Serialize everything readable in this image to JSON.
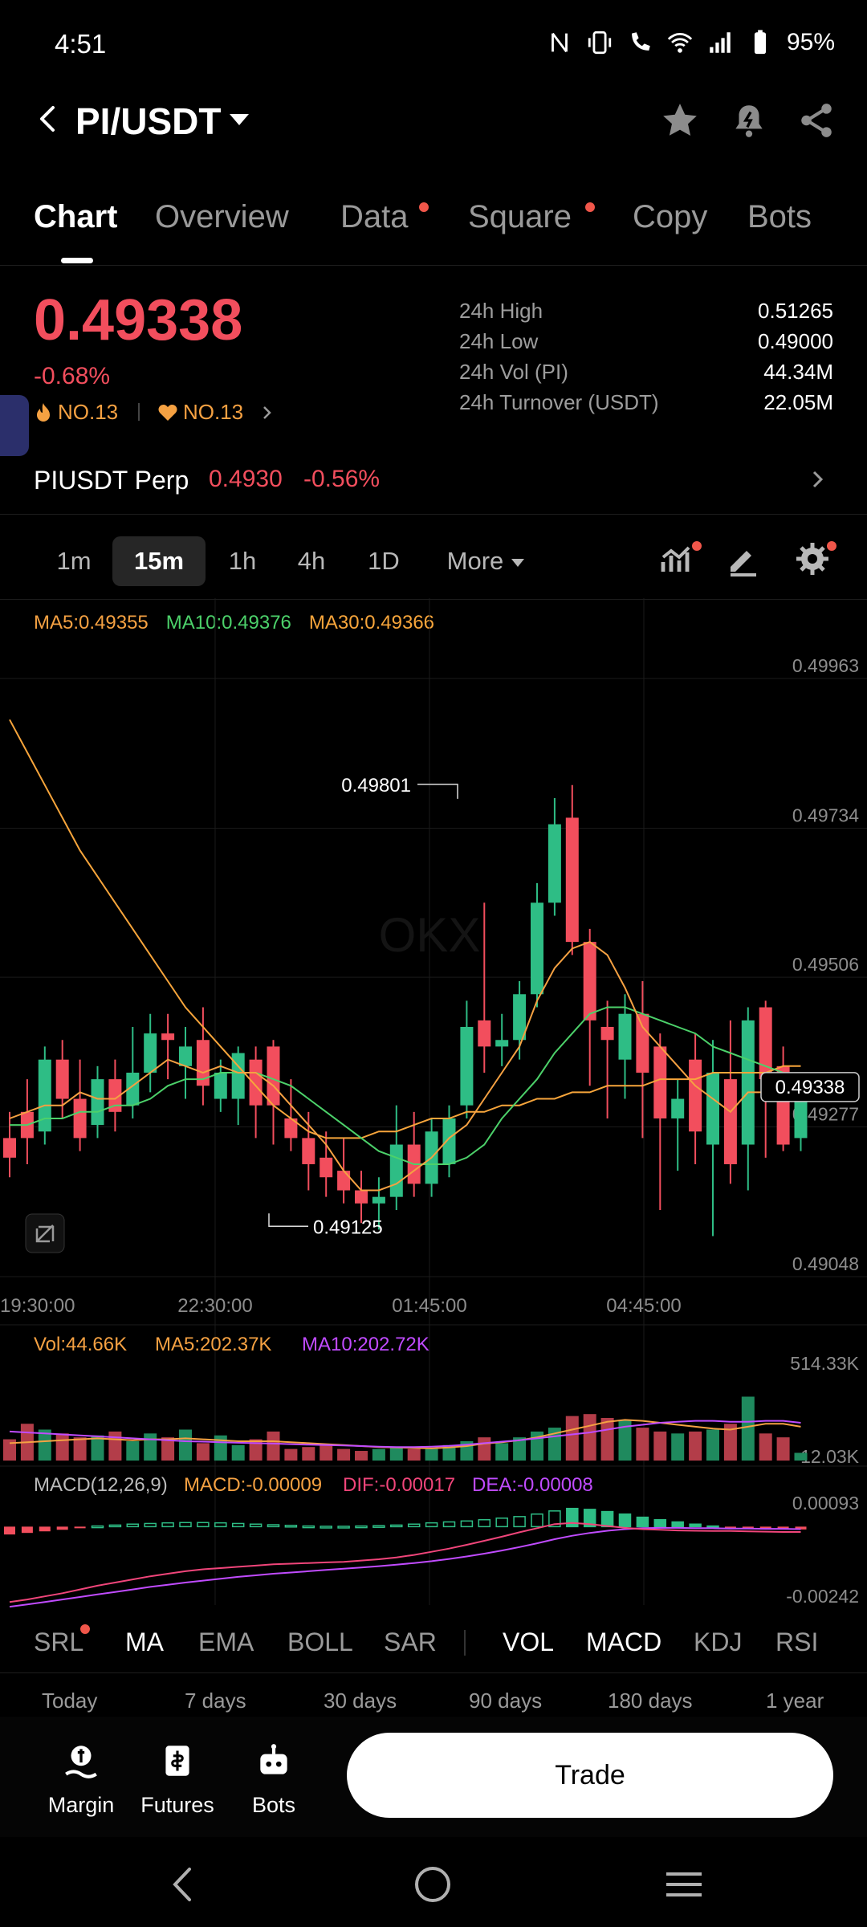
{
  "status_bar": {
    "time": "4:51",
    "battery": "95%"
  },
  "header": {
    "pair": "PI/USDT"
  },
  "tabs": [
    {
      "label": "Chart",
      "active": true
    },
    {
      "label": "Overview"
    },
    {
      "label": "Data",
      "dot": true
    },
    {
      "label": "Square",
      "dot": true
    },
    {
      "label": "Copy"
    },
    {
      "label": "Bots"
    }
  ],
  "ticker": {
    "price": "0.49338",
    "change": "-0.68%",
    "rank1": "NO.13",
    "rank2": "NO.13",
    "stats": [
      {
        "label": "24h High",
        "value": "0.51265"
      },
      {
        "label": "24h Low",
        "value": "0.49000"
      },
      {
        "label": "24h Vol (PI)",
        "value": "44.34M"
      },
      {
        "label": "24h Turnover (USDT)",
        "value": "22.05M"
      }
    ]
  },
  "perp": {
    "name": "PIUSDT Perp",
    "price": "0.4930",
    "change": "-0.56%"
  },
  "timeframes": [
    "1m",
    "15m",
    "1h",
    "4h",
    "1D",
    "More"
  ],
  "active_timeframe": "15m",
  "colors": {
    "up": "#2ebd85",
    "down": "#f24e5d",
    "ma5": "#f5a142",
    "ma10": "#4cd16a",
    "ma30": "#f7a53b",
    "vol_ma10": "#c04bff",
    "macd_dea": "#c04bff",
    "macd_dif": "#f0457a"
  },
  "chart_data": {
    "type": "candlestick",
    "ma_legend": {
      "ma5": "MA5:0.49355",
      "ma10": "MA10:0.49376",
      "ma30": "MA30:0.49366"
    },
    "y_ticks": [
      "0.49963",
      "0.49734",
      "0.49506",
      "0.49277",
      "0.49048"
    ],
    "ylim": [
      0.49048,
      0.49963
    ],
    "x_ticks": [
      "19:30:00",
      "22:30:00",
      "01:45:00",
      "04:45:00"
    ],
    "high_label": "0.49801",
    "low_label": "0.49125",
    "last_price": "0.49338",
    "candles": [
      [
        0.4926,
        0.4923,
        0.493,
        0.492
      ],
      [
        0.493,
        0.4926,
        0.4935,
        0.4922
      ],
      [
        0.4927,
        0.4938,
        0.494,
        0.4925
      ],
      [
        0.4938,
        0.4932,
        0.4941,
        0.4929
      ],
      [
        0.4932,
        0.4926,
        0.4938,
        0.4924
      ],
      [
        0.4928,
        0.4935,
        0.4937,
        0.4926
      ],
      [
        0.4935,
        0.493,
        0.4938,
        0.4927
      ],
      [
        0.4931,
        0.4936,
        0.4943,
        0.4929
      ],
      [
        0.4936,
        0.4942,
        0.4945,
        0.4933
      ],
      [
        0.4942,
        0.4941,
        0.4945,
        0.4935
      ],
      [
        0.4937,
        0.494,
        0.4943,
        0.4932
      ],
      [
        0.4941,
        0.4934,
        0.4946,
        0.4931
      ],
      [
        0.4932,
        0.4936,
        0.4938,
        0.493
      ],
      [
        0.4932,
        0.4939,
        0.494,
        0.4928
      ],
      [
        0.4938,
        0.4931,
        0.494,
        0.4926
      ],
      [
        0.494,
        0.4931,
        0.4941,
        0.4925
      ],
      [
        0.4929,
        0.4926,
        0.4935,
        0.4924
      ],
      [
        0.4926,
        0.4922,
        0.493,
        0.4918
      ],
      [
        0.4923,
        0.492,
        0.4927,
        0.4917
      ],
      [
        0.4921,
        0.4918,
        0.4926,
        0.4916
      ],
      [
        0.4918,
        0.4916,
        0.4921,
        0.4913
      ],
      [
        0.4916,
        0.4917,
        0.492,
        0.4912
      ],
      [
        0.4917,
        0.4925,
        0.4931,
        0.4915
      ],
      [
        0.4925,
        0.4919,
        0.493,
        0.4917
      ],
      [
        0.4919,
        0.4927,
        0.4929,
        0.4917
      ],
      [
        0.4922,
        0.4929,
        0.4931,
        0.492
      ],
      [
        0.4931,
        0.4943,
        0.4947,
        0.4929
      ],
      [
        0.4944,
        0.494,
        0.4962,
        0.4936
      ],
      [
        0.494,
        0.4941,
        0.4945,
        0.4937
      ],
      [
        0.4941,
        0.4948,
        0.495,
        0.4938
      ],
      [
        0.4948,
        0.4962,
        0.4965,
        0.4946
      ],
      [
        0.4962,
        0.4974,
        0.4978,
        0.496
      ],
      [
        0.4975,
        0.4956,
        0.498,
        0.4954
      ],
      [
        0.4956,
        0.4944,
        0.4958,
        0.4934
      ],
      [
        0.4943,
        0.4941,
        0.4947,
        0.4929
      ],
      [
        0.4938,
        0.4945,
        0.4948,
        0.4932
      ],
      [
        0.4945,
        0.4936,
        0.495,
        0.4926
      ],
      [
        0.494,
        0.4929,
        0.4942,
        0.4915
      ],
      [
        0.4929,
        0.4932,
        0.4935,
        0.4921
      ],
      [
        0.4938,
        0.4927,
        0.4942,
        0.4922
      ],
      [
        0.4925,
        0.4936,
        0.4941,
        0.4911
      ],
      [
        0.4935,
        0.4922,
        0.4944,
        0.4919
      ],
      [
        0.4925,
        0.4944,
        0.4946,
        0.4918
      ],
      [
        0.4946,
        0.4935,
        0.4947,
        0.4923
      ],
      [
        0.4937,
        0.4925,
        0.494,
        0.4924
      ],
      [
        0.4926,
        0.4934,
        0.4936,
        0.4924
      ]
    ],
    "ma5": [
      0.4929,
      0.493,
      0.4931,
      0.4931,
      0.4933,
      0.4932,
      0.4932,
      0.4934,
      0.4936,
      0.4938,
      0.4937,
      0.4936,
      0.4937,
      0.4936,
      0.4936,
      0.4934,
      0.4931,
      0.4928,
      0.4925,
      0.4921,
      0.4918,
      0.4918,
      0.4919,
      0.4921,
      0.4923,
      0.4926,
      0.4928,
      0.4932,
      0.4936,
      0.494,
      0.4947,
      0.4952,
      0.4955,
      0.4956,
      0.4954,
      0.4949,
      0.4943,
      0.494,
      0.4937,
      0.4934,
      0.4932,
      0.493,
      0.4933,
      0.4933,
      0.4934,
      0.4933
    ],
    "ma10": [
      0.4928,
      0.4928,
      0.4929,
      0.4929,
      0.493,
      0.493,
      0.4931,
      0.4931,
      0.4932,
      0.4934,
      0.4935,
      0.4935,
      0.4936,
      0.4936,
      0.4936,
      0.4935,
      0.4934,
      0.4932,
      0.493,
      0.4928,
      0.4926,
      0.4924,
      0.4923,
      0.4922,
      0.4922,
      0.4922,
      0.4923,
      0.4925,
      0.4929,
      0.4932,
      0.4935,
      0.4939,
      0.4942,
      0.4945,
      0.4946,
      0.4946,
      0.4945,
      0.4944,
      0.4943,
      0.4942,
      0.494,
      0.4939,
      0.4938,
      0.4937,
      0.4936,
      0.4935
    ],
    "ma30": [
      0.499,
      0.4985,
      0.498,
      0.4975,
      0.497,
      0.4966,
      0.4962,
      0.4958,
      0.4954,
      0.495,
      0.4946,
      0.4943,
      0.494,
      0.4937,
      0.4934,
      0.4931,
      0.4929,
      0.4927,
      0.4926,
      0.4926,
      0.4926,
      0.4927,
      0.4927,
      0.4928,
      0.4929,
      0.4929,
      0.493,
      0.493,
      0.4931,
      0.4931,
      0.4932,
      0.4932,
      0.4933,
      0.4933,
      0.4934,
      0.4934,
      0.4934,
      0.4935,
      0.4935,
      0.4935,
      0.4936,
      0.4936,
      0.4936,
      0.4936,
      0.4937,
      0.4937
    ],
    "volume": {
      "legend": {
        "vol": "Vol:44.66K",
        "ma5": "MA5:202.37K",
        "ma10": "MA10:202.72K"
      },
      "y_ticks": [
        "514.33K",
        "-12.03K"
      ],
      "ylim": [
        -12.03,
        514.33
      ],
      "values": [
        110,
        190,
        160,
        140,
        120,
        130,
        150,
        100,
        140,
        120,
        160,
        90,
        130,
        80,
        110,
        150,
        60,
        70,
        80,
        60,
        50,
        60,
        70,
        60,
        60,
        80,
        100,
        120,
        90,
        120,
        150,
        170,
        230,
        240,
        220,
        210,
        170,
        150,
        140,
        150,
        160,
        190,
        330,
        140,
        120,
        40
      ],
      "ma5": [
        90,
        95,
        100,
        105,
        110,
        115,
        110,
        105,
        110,
        110,
        115,
        110,
        105,
        100,
        100,
        100,
        95,
        90,
        85,
        80,
        75,
        70,
        68,
        65,
        63,
        68,
        75,
        88,
        95,
        105,
        120,
        140,
        160,
        180,
        200,
        210,
        205,
        195,
        185,
        175,
        165,
        160,
        175,
        190,
        190,
        175
      ],
      "ma10": [
        150,
        145,
        140,
        135,
        130,
        125,
        120,
        115,
        110,
        105,
        100,
        98,
        95,
        92,
        90,
        88,
        85,
        82,
        80,
        78,
        75,
        72,
        70,
        70,
        72,
        76,
        82,
        90,
        98,
        105,
        115,
        125,
        135,
        145,
        160,
        175,
        185,
        195,
        200,
        205,
        205,
        200,
        200,
        205,
        205,
        195
      ]
    },
    "macd": {
      "legend": {
        "params": "MACD(12,26,9)",
        "macd": "MACD:-0.00009",
        "dif": "DIF:-0.00017",
        "dea": "DEA:-0.00008"
      },
      "y_ticks": [
        "0.00093",
        "-0.00242"
      ],
      "ylim": [
        -0.00242,
        0.00093
      ],
      "hist": [
        -0.00025,
        -0.0002,
        -0.00015,
        -0.0001,
        -5e-05,
        2e-05,
        5e-05,
        8e-05,
        0.0001,
        0.00012,
        0.00013,
        0.00013,
        0.00012,
        0.0001,
        8e-05,
        6e-05,
        4e-05,
        2e-05,
        1e-05,
        1e-05,
        2e-05,
        3e-05,
        5e-05,
        8e-05,
        0.00012,
        0.00015,
        0.00018,
        0.00022,
        0.00027,
        0.00032,
        0.0004,
        0.0005,
        0.00058,
        0.00055,
        0.00048,
        0.0004,
        0.0003,
        0.00022,
        0.00015,
        8e-05,
        2e-05,
        -2e-05,
        -4e-05,
        -6e-05,
        -8e-05,
        -9e-05
      ],
      "dif": [
        -0.0024,
        -0.00232,
        -0.00222,
        -0.00212,
        -0.002,
        -0.00188,
        -0.00178,
        -0.00168,
        -0.00158,
        -0.0015,
        -0.00142,
        -0.00136,
        -0.00132,
        -0.00128,
        -0.00124,
        -0.0012,
        -0.00118,
        -0.00116,
        -0.00114,
        -0.00112,
        -0.00108,
        -0.00104,
        -0.00098,
        -0.0009,
        -0.0008,
        -0.0007,
        -0.00058,
        -0.00045,
        -0.00032,
        -0.00018,
        -5e-05,
        8e-05,
        0.00012,
        8e-05,
        2e-05,
        -4e-05,
        -8e-05,
        -0.0001,
        -0.00012,
        -0.00013,
        -0.00014,
        -0.00014,
        -0.00015,
        -0.00016,
        -0.00017,
        -0.00017
      ],
      "dea": [
        -0.00255,
        -0.00248,
        -0.0024,
        -0.00232,
        -0.00224,
        -0.00216,
        -0.00208,
        -0.002,
        -0.00192,
        -0.00185,
        -0.00178,
        -0.00172,
        -0.00166,
        -0.0016,
        -0.00155,
        -0.0015,
        -0.00146,
        -0.00142,
        -0.00138,
        -0.00134,
        -0.0013,
        -0.00126,
        -0.00121,
        -0.00116,
        -0.0011,
        -0.00103,
        -0.00095,
        -0.00086,
        -0.00076,
        -0.00065,
        -0.00053,
        -0.0004,
        -0.00029,
        -0.0002,
        -0.00013,
        -8e-05,
        -5e-05,
        -4e-05,
        -4e-05,
        -5e-05,
        -5e-05,
        -6e-05,
        -6e-05,
        -7e-05,
        -7e-05,
        -8e-05
      ]
    }
  },
  "indicators": [
    {
      "label": "SRL",
      "dot": true
    },
    {
      "label": "MA",
      "on": true
    },
    {
      "label": "EMA"
    },
    {
      "label": "BOLL"
    },
    {
      "label": "SAR"
    },
    {
      "label": "VOL",
      "on": true
    },
    {
      "label": "MACD",
      "on": true
    },
    {
      "label": "KDJ"
    },
    {
      "label": "RSI"
    }
  ],
  "periods": [
    "Today",
    "7 days",
    "30 days",
    "90 days",
    "180 days",
    "1 year"
  ],
  "bottom_nav": [
    {
      "label": "Margin",
      "icon": "margin-icon"
    },
    {
      "label": "Futures",
      "icon": "futures-icon"
    },
    {
      "label": "Bots",
      "icon": "bots-icon"
    }
  ],
  "trade_button": "Trade"
}
